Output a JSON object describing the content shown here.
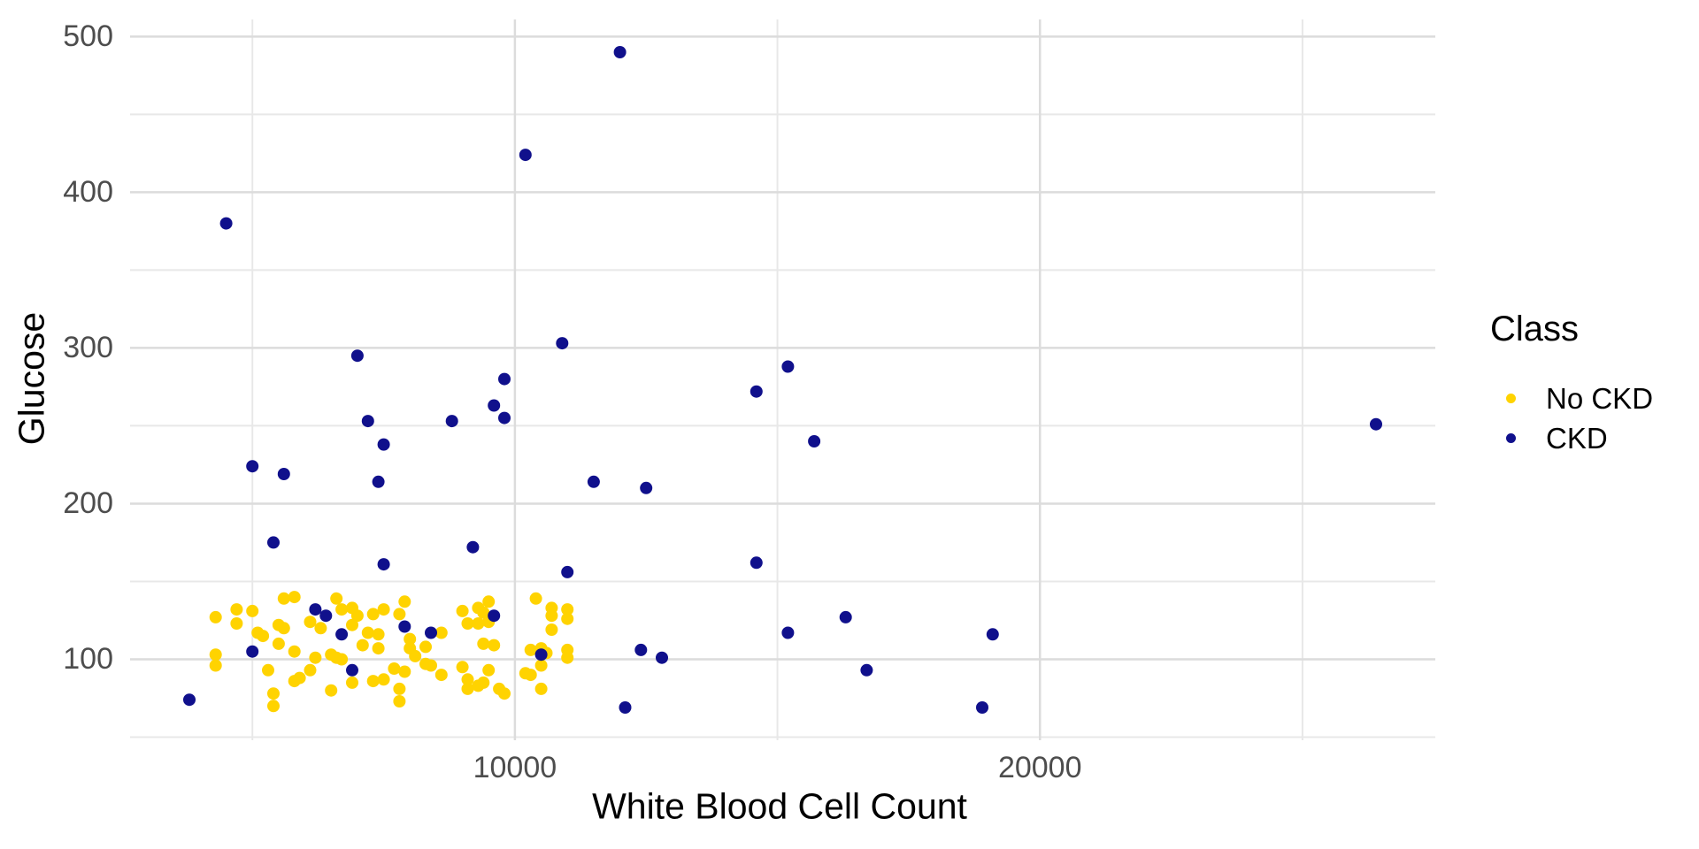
{
  "chart_data": {
    "type": "scatter",
    "title": "",
    "xlabel": "White Blood Cell Count",
    "ylabel": "Glucose",
    "xlim": [
      2670,
      27530
    ],
    "ylim": [
      48,
      511
    ],
    "x_major_ticks": [
      {
        "value": 10000,
        "label": "10000"
      },
      {
        "value": 20000,
        "label": "20000"
      }
    ],
    "y_major_ticks": [
      {
        "value": 100,
        "label": "100"
      },
      {
        "value": 200,
        "label": "200"
      },
      {
        "value": 300,
        "label": "300"
      },
      {
        "value": 400,
        "label": "400"
      },
      {
        "value": 500,
        "label": "500"
      }
    ],
    "x_minor_ticks": [
      5000,
      15000,
      25000
    ],
    "y_minor_ticks": [
      50,
      150,
      250,
      350,
      450
    ],
    "grid": {
      "major_color": "#dcdcdc",
      "minor_color": "#e8e8e8",
      "background": "#ffffff"
    },
    "point_radius": 7,
    "tick_label_color": "#4d4d4d",
    "legend": {
      "title": "Class",
      "position": "right",
      "entries": [
        {
          "label": "No CKD",
          "color": "#ffd300"
        },
        {
          "label": "CKD",
          "color": "#10108c"
        }
      ]
    },
    "series": [
      {
        "name": "No CKD",
        "color": "#ffd300",
        "points": [
          [
            4300,
            127
          ],
          [
            4700,
            132
          ],
          [
            4700,
            123
          ],
          [
            5000,
            131
          ],
          [
            4300,
            103
          ],
          [
            4300,
            96
          ],
          [
            5100,
            117
          ],
          [
            5200,
            115
          ],
          [
            5500,
            122
          ],
          [
            5600,
            120
          ],
          [
            5500,
            110
          ],
          [
            5600,
            139
          ],
          [
            5800,
            140
          ],
          [
            5800,
            105
          ],
          [
            5300,
            93
          ],
          [
            5400,
            78
          ],
          [
            5400,
            70
          ],
          [
            5800,
            86
          ],
          [
            5900,
            88
          ],
          [
            6600,
            139
          ],
          [
            6700,
            132
          ],
          [
            6900,
            133
          ],
          [
            7000,
            128
          ],
          [
            6900,
            122
          ],
          [
            6600,
            101
          ],
          [
            6700,
            100
          ],
          [
            6200,
            101
          ],
          [
            6100,
            93
          ],
          [
            6500,
            80
          ],
          [
            6900,
            85
          ],
          [
            6100,
            124
          ],
          [
            6300,
            120
          ],
          [
            6500,
            103
          ],
          [
            7300,
            129
          ],
          [
            7500,
            132
          ],
          [
            7900,
            137
          ],
          [
            7800,
            129
          ],
          [
            7200,
            117
          ],
          [
            7100,
            109
          ],
          [
            7400,
            116
          ],
          [
            7400,
            107
          ],
          [
            8000,
            113
          ],
          [
            8000,
            107
          ],
          [
            8100,
            102
          ],
          [
            8300,
            108
          ],
          [
            8300,
            97
          ],
          [
            8400,
            96
          ],
          [
            7700,
            94
          ],
          [
            7900,
            92
          ],
          [
            7300,
            86
          ],
          [
            7500,
            87
          ],
          [
            7800,
            81
          ],
          [
            7800,
            73
          ],
          [
            8600,
            117
          ],
          [
            8600,
            90
          ],
          [
            9000,
            95
          ],
          [
            9100,
            87
          ],
          [
            9100,
            81
          ],
          [
            9300,
            83
          ],
          [
            9400,
            85
          ],
          [
            9000,
            131
          ],
          [
            9300,
            133
          ],
          [
            9100,
            123
          ],
          [
            9300,
            123
          ],
          [
            9400,
            130
          ],
          [
            9500,
            137
          ],
          [
            9500,
            124
          ],
          [
            9400,
            110
          ],
          [
            9600,
            109
          ],
          [
            9500,
            93
          ],
          [
            9700,
            81
          ],
          [
            9800,
            78
          ],
          [
            10400,
            139
          ],
          [
            10700,
            133
          ],
          [
            10700,
            128
          ],
          [
            11000,
            132
          ],
          [
            11000,
            126
          ],
          [
            10700,
            119
          ],
          [
            10300,
            106
          ],
          [
            10500,
            107
          ],
          [
            10600,
            104
          ],
          [
            11000,
            106
          ],
          [
            11000,
            101
          ],
          [
            10500,
            96
          ],
          [
            10200,
            91
          ],
          [
            10300,
            90
          ],
          [
            10500,
            81
          ]
        ]
      },
      {
        "name": "CKD",
        "color": "#10108c",
        "points": [
          [
            12000,
            490
          ],
          [
            10200,
            424
          ],
          [
            4500,
            380
          ],
          [
            10900,
            303
          ],
          [
            7000,
            295
          ],
          [
            15200,
            288
          ],
          [
            9800,
            280
          ],
          [
            14600,
            272
          ],
          [
            9600,
            263
          ],
          [
            9800,
            255
          ],
          [
            7200,
            253
          ],
          [
            8800,
            253
          ],
          [
            26400,
            251
          ],
          [
            15700,
            240
          ],
          [
            7500,
            238
          ],
          [
            5000,
            224
          ],
          [
            5600,
            219
          ],
          [
            7400,
            214
          ],
          [
            11500,
            214
          ],
          [
            12500,
            210
          ],
          [
            5400,
            175
          ],
          [
            9200,
            172
          ],
          [
            14600,
            162
          ],
          [
            7500,
            161
          ],
          [
            11000,
            156
          ],
          [
            6200,
            132
          ],
          [
            6400,
            128
          ],
          [
            9600,
            128
          ],
          [
            16300,
            127
          ],
          [
            7900,
            121
          ],
          [
            15200,
            117
          ],
          [
            8400,
            117
          ],
          [
            6700,
            116
          ],
          [
            19100,
            116
          ],
          [
            12400,
            106
          ],
          [
            5000,
            105
          ],
          [
            10500,
            103
          ],
          [
            12800,
            101
          ],
          [
            16700,
            93
          ],
          [
            6900,
            93
          ],
          [
            3800,
            74
          ],
          [
            12100,
            69
          ],
          [
            18900,
            69
          ]
        ]
      }
    ]
  }
}
